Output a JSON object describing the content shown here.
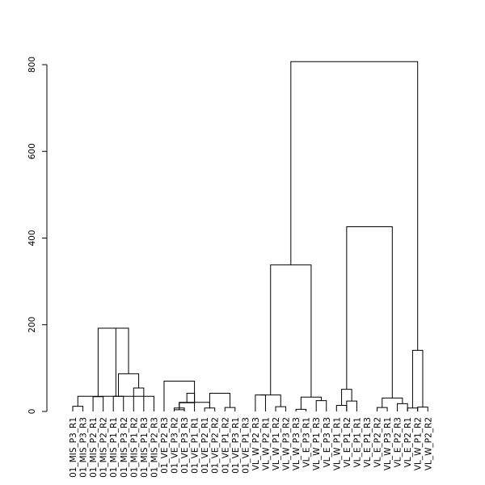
{
  "chart_data": {
    "type": "dendrogram",
    "title": "",
    "xlabel": "",
    "ylabel": "",
    "ylim": [
      0,
      800
    ],
    "yticks": [
      0,
      200,
      400,
      600,
      800
    ],
    "grid": false,
    "leaves": [
      "01_MIS_P3_R1",
      "01_MIS_P3_R3",
      "01_MIS_P2_R1",
      "01_MIS_P2_R2",
      "01_MIS_P1_R1",
      "01_MIS_P3_R2",
      "01_MIS_P1_R2",
      "01_MIS_P1_R3",
      "01_MIS_P2_R3",
      "01_VE_P2_R3",
      "01_VE_P3_R2",
      "01_VE_P3_R3",
      "01_VE_P1_R1",
      "01_VE_P2_R1",
      "01_VE_P2_R2",
      "01_VE_P1_R2",
      "01_VE_P3_R1",
      "01_VE_P1_R3",
      "VL_W_P2_R3",
      "VL_W_P2_R1",
      "VL_W_P1_R2",
      "VL_W_P3_R2",
      "VL_W_P3_R3",
      "VL_E_P3_R1",
      "VL_W_P1_R3",
      "VL_E_P3_R3",
      "VL_W_P1_R1",
      "VL_E_P1_R2",
      "VL_E_P1_R1",
      "VL_E_P1_R3",
      "VL_E_P2_R2",
      "VL_W_P3_R1",
      "VL_E_P2_R3",
      "VL_E_P2_R1",
      "VL_W_P1_R2",
      "VL_W_P2_R2"
    ],
    "merges": [
      [
        1,
        2,
        12
      ],
      [
        3,
        4,
        34
      ],
      [
        5,
        6,
        35
      ],
      [
        7,
        8,
        54
      ],
      [
        -1,
        9,
        35
      ],
      [
        -3,
        -4,
        87
      ],
      [
        -5,
        -6,
        192
      ],
      [
        -2,
        -7,
        192
      ],
      [
        11,
        12,
        8
      ],
      [
        11,
        12,
        4
      ],
      [
        14,
        15,
        8
      ],
      [
        16,
        17,
        9
      ],
      [
        13,
        -9,
        20
      ],
      [
        -10,
        -11,
        21
      ],
      [
        -11,
        -12,
        42
      ],
      [
        -13,
        -14,
        42
      ],
      [
        10,
        -14,
        70
      ],
      [
        19,
        20,
        38
      ],
      [
        21,
        22,
        11
      ],
      [
        23,
        24,
        5
      ],
      [
        25,
        26,
        25
      ],
      [
        27,
        28,
        14
      ],
      [
        28,
        29,
        24
      ],
      [
        31,
        32,
        9
      ],
      [
        33,
        34,
        18
      ],
      [
        34,
        35,
        8
      ],
      [
        35,
        36,
        10
      ],
      [
        -18,
        -19,
        38
      ],
      [
        -20,
        -21,
        33
      ],
      [
        -22,
        -23,
        51
      ],
      [
        -24,
        -25,
        31
      ],
      [
        -26,
        -27,
        141
      ],
      [
        -28,
        -29,
        338
      ],
      [
        -30,
        -31,
        426
      ],
      [
        -32,
        -33,
        807
      ]
    ]
  }
}
